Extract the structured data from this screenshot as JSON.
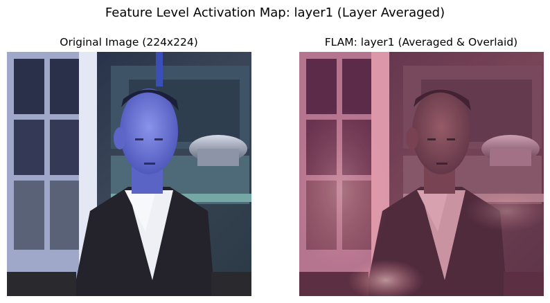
{
  "figure": {
    "suptitle": "Feature Level Activation Map: layer1 (Layer Averaged)"
  },
  "panels": [
    {
      "title": "Original Image (224x224)",
      "image": "photo of a man in a dark suit jacket and white shirt, head bowed, seated in a studio set with window panes and a glass bowl, strong blue color cast",
      "palette": {
        "background": "#2c3446",
        "window": "#c7cde6",
        "skin": "#6f79d8",
        "jacket": "#23222b",
        "shirt": "#eef0f6"
      }
    },
    {
      "title": "FLAM: layer1 (Averaged & Overlaid)",
      "image": "same photo with averaged layer1 activation heatmap overlaid in pink and magenta tones",
      "palette": {
        "background": "#5a3048",
        "window": "#d79aa8",
        "skin": "#7a4a58",
        "jacket": "#3a2231",
        "shirt": "#c99aa5",
        "glow": "#f5a3a8"
      }
    }
  ]
}
